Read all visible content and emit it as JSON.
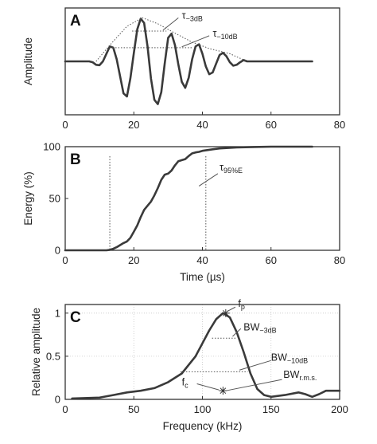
{
  "chart_data": [
    {
      "panel": "A",
      "type": "line",
      "xlabel": "",
      "ylabel": "Amplitude",
      "xlim": [
        0,
        80
      ],
      "xticks": [
        "0",
        "20",
        "40",
        "60",
        "80"
      ],
      "yticks": [],
      "grid": false,
      "series": [
        {
          "x": [
            0,
            7,
            8,
            9,
            10,
            11,
            12,
            13,
            14,
            15,
            16,
            17,
            18,
            19,
            20,
            21,
            22,
            23,
            24,
            25,
            26,
            27,
            28,
            29,
            30,
            31,
            32,
            33,
            34,
            35,
            36,
            37,
            38,
            39,
            40,
            41,
            42,
            43,
            44,
            45,
            46,
            47,
            48,
            49,
            50,
            51,
            52,
            53,
            72
          ],
          "y": [
            0,
            0,
            -0.02,
            -0.08,
            -0.09,
            0,
            0.18,
            0.35,
            0.32,
            0.05,
            -0.35,
            -0.75,
            -0.82,
            -0.4,
            0.2,
            0.75,
            1.0,
            0.9,
            0.35,
            -0.4,
            -0.9,
            -1.0,
            -0.72,
            -0.05,
            0.55,
            0.65,
            0.38,
            -0.08,
            -0.48,
            -0.62,
            -0.38,
            0.05,
            0.35,
            0.4,
            0.18,
            -0.12,
            -0.3,
            -0.26,
            -0.05,
            0.15,
            0.2,
            0.12,
            -0.02,
            -0.1,
            -0.08,
            -0.02,
            0.03,
            0,
            0
          ]
        }
      ],
      "annotations": [
        {
          "text": "τ",
          "subscript": "−3dB"
        },
        {
          "text": "τ",
          "subscript": "−10dB"
        }
      ]
    },
    {
      "panel": "B",
      "type": "line",
      "xlabel": "Time (µs)",
      "ylabel": "Energy (%)",
      "xlim": [
        0,
        80
      ],
      "ylim": [
        0,
        100
      ],
      "xticks": [
        "0",
        "20",
        "40",
        "60",
        "80"
      ],
      "yticks": [
        "0",
        "50",
        "100"
      ],
      "grid": false,
      "series": [
        {
          "x": [
            0,
            12,
            13,
            14,
            15,
            16,
            17,
            18,
            19,
            20,
            21,
            22,
            23,
            24,
            25,
            26,
            27,
            28,
            29,
            30,
            31,
            32,
            33,
            34,
            35,
            36,
            37,
            38,
            39,
            40,
            41,
            43,
            45,
            50,
            55,
            60,
            72
          ],
          "y": [
            0,
            0,
            0.5,
            1.5,
            3,
            5,
            7,
            8.5,
            12,
            18,
            24,
            32,
            39,
            43,
            47,
            53,
            60,
            68,
            73,
            74,
            77,
            82,
            86,
            87,
            88,
            91,
            93.5,
            94.5,
            95,
            96,
            96.5,
            97.5,
            98.3,
            99.2,
            99.7,
            100,
            100
          ]
        }
      ],
      "markers": [
        13,
        41
      ],
      "annotations": [
        {
          "text": "τ",
          "subscript": "95%E"
        }
      ]
    },
    {
      "panel": "C",
      "type": "line",
      "xlabel": "Frequency (kHz)",
      "ylabel": "Relative amplitude",
      "xlim": [
        0,
        200
      ],
      "ylim": [
        0,
        1.1
      ],
      "xticks": [
        "0",
        "50",
        "100",
        "150",
        "200"
      ],
      "yticks": [
        "0",
        "0.5",
        "1"
      ],
      "grid": true,
      "series": [
        {
          "x": [
            5,
            25,
            35,
            45,
            55,
            65,
            75,
            85,
            95,
            100,
            105,
            110,
            115,
            120,
            125,
            130,
            135,
            140,
            145,
            150,
            160,
            170,
            175,
            180,
            185,
            190,
            200
          ],
          "y": [
            0.01,
            0.02,
            0.05,
            0.08,
            0.1,
            0.13,
            0.2,
            0.3,
            0.5,
            0.65,
            0.8,
            0.93,
            1.0,
            0.95,
            0.78,
            0.55,
            0.3,
            0.12,
            0.05,
            0.03,
            0.05,
            0.08,
            0.06,
            0.03,
            0.06,
            0.1,
            0.1
          ]
        }
      ],
      "annotations": [
        {
          "text": "f",
          "subscript": "p"
        },
        {
          "text": "BW",
          "subscript": "−3dB"
        },
        {
          "text": "BW",
          "subscript": "−10dB"
        },
        {
          "text": "f",
          "subscript": "c"
        },
        {
          "text": "BW",
          "subscript": "r.m.s."
        }
      ]
    }
  ]
}
